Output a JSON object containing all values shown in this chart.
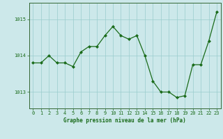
{
  "x": [
    0,
    1,
    2,
    3,
    4,
    5,
    6,
    7,
    8,
    9,
    10,
    11,
    12,
    13,
    14,
    15,
    16,
    17,
    18,
    19,
    20,
    21,
    22,
    23
  ],
  "y": [
    1013.8,
    1013.8,
    1014.0,
    1013.8,
    1013.8,
    1013.7,
    1014.1,
    1014.25,
    1014.25,
    1014.55,
    1014.8,
    1014.55,
    1014.45,
    1014.55,
    1014.0,
    1013.3,
    1013.0,
    1013.0,
    1012.85,
    1012.9,
    1013.75,
    1013.75,
    1014.4,
    1015.2
  ],
  "line_color": "#1a6b1a",
  "marker": "D",
  "marker_size": 2.0,
  "bg_color": "#cce8ea",
  "grid_color": "#99cccc",
  "axis_color": "#336633",
  "tick_color": "#1a6b1a",
  "xlabel": "Graphe pression niveau de la mer (hPa)",
  "xlabel_fontsize": 5.5,
  "ylim": [
    1012.55,
    1015.45
  ],
  "yticks": [
    1013,
    1014,
    1015
  ],
  "xticks": [
    0,
    1,
    2,
    3,
    4,
    5,
    6,
    7,
    8,
    9,
    10,
    11,
    12,
    13,
    14,
    15,
    16,
    17,
    18,
    19,
    20,
    21,
    22,
    23
  ],
  "tick_fontsize": 5.0,
  "linewidth": 0.9,
  "fig_bg_color": "#cce8ea"
}
